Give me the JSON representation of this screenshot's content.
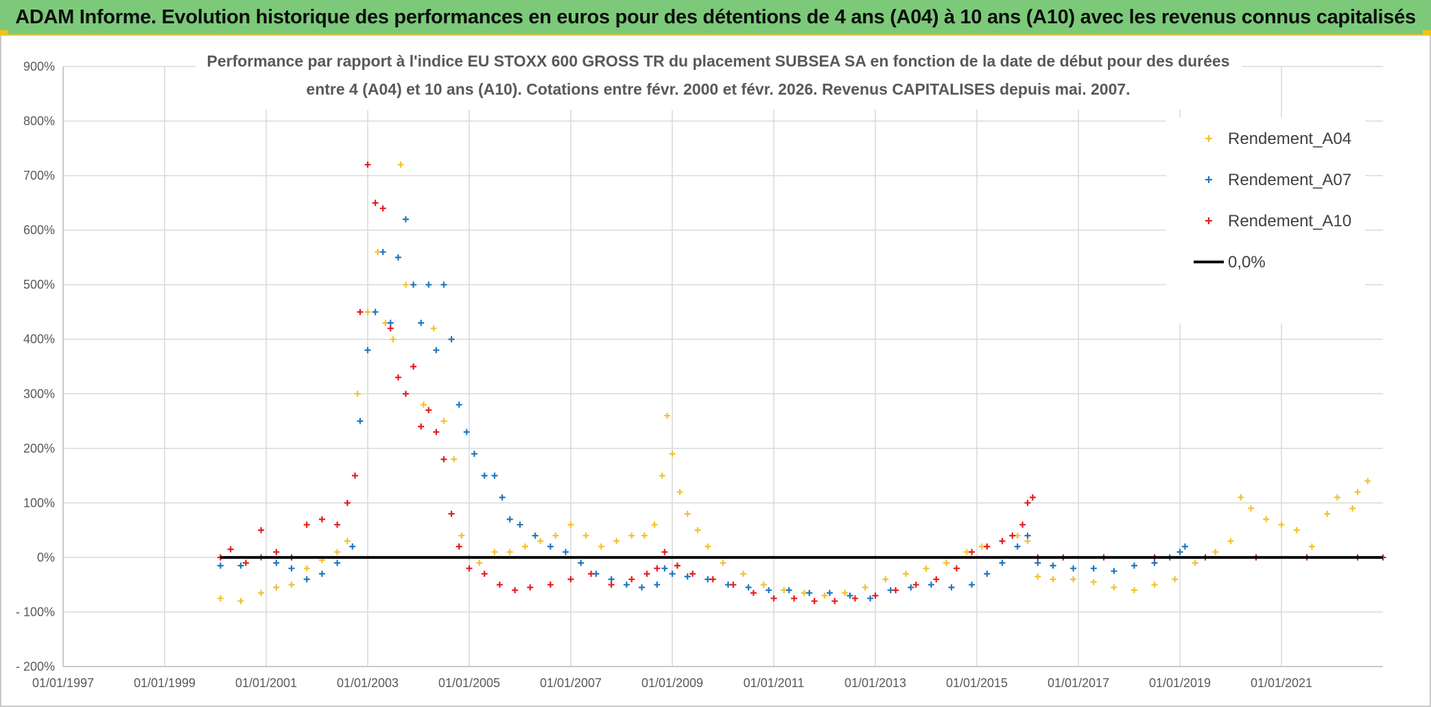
{
  "header": {
    "banner": "ADAM Informe. Evolution historique des performances en euros pour des détentions de 4 ans (A04) à 10 ans (A10) avec les revenus connus capitalisés"
  },
  "chart_data": {
    "type": "scatter",
    "title_line1": "Performance  par rapport à l'indice EU STOXX 600 GROSS TR  du placement SUBSEA SA en fonction de la date de début pour des durées",
    "title_line2": "entre 4 (A04) et 10 ans (A10). Cotations entre févr. 2000 et févr. 2026. Revenus CAPITALISES depuis mai. 2007.",
    "xlabel": "",
    "ylabel": "",
    "x_range": [
      1997.0,
      2023.0
    ],
    "ylim": [
      -200,
      900
    ],
    "y_ticks": [
      -200,
      -100,
      0,
      100,
      200,
      300,
      400,
      500,
      600,
      700,
      800,
      900
    ],
    "y_tick_labels": [
      "- 200%",
      "- 100%",
      "0%",
      "100%",
      "200%",
      "300%",
      "400%",
      "500%",
      "600%",
      "700%",
      "800%",
      "900%"
    ],
    "x_ticks": [
      1997,
      1999,
      2001,
      2003,
      2005,
      2007,
      2009,
      2011,
      2013,
      2015,
      2017,
      2019,
      2021
    ],
    "x_tick_labels": [
      "01/01/1997",
      "01/01/1999",
      "01/01/2001",
      "01/01/2003",
      "01/01/2005",
      "01/01/2007",
      "01/01/2009",
      "01/01/2011",
      "01/01/2013",
      "01/01/2015",
      "01/01/2017",
      "01/01/2019",
      "01/01/2021"
    ],
    "legend_position": "top-right",
    "series": [
      {
        "name": "Rendement_A04",
        "color": "#f5c02b",
        "points": [
          [
            2000.1,
            -75
          ],
          [
            2000.5,
            -80
          ],
          [
            2000.9,
            -65
          ],
          [
            2001.2,
            -55
          ],
          [
            2001.5,
            -50
          ],
          [
            2001.8,
            -20
          ],
          [
            2002.1,
            -5
          ],
          [
            2002.4,
            10
          ],
          [
            2002.6,
            30
          ],
          [
            2002.8,
            300
          ],
          [
            2003.0,
            450
          ],
          [
            2003.2,
            560
          ],
          [
            2003.35,
            430
          ],
          [
            2003.5,
            400
          ],
          [
            2003.65,
            720
          ],
          [
            2003.75,
            500
          ],
          [
            2003.9,
            350
          ],
          [
            2004.1,
            280
          ],
          [
            2004.3,
            420
          ],
          [
            2004.5,
            250
          ],
          [
            2004.7,
            180
          ],
          [
            2004.85,
            40
          ],
          [
            2005.0,
            0
          ],
          [
            2005.2,
            -10
          ],
          [
            2005.5,
            10
          ],
          [
            2005.8,
            10
          ],
          [
            2006.1,
            20
          ],
          [
            2006.4,
            30
          ],
          [
            2006.7,
            40
          ],
          [
            2007.0,
            60
          ],
          [
            2007.3,
            40
          ],
          [
            2007.6,
            20
          ],
          [
            2007.9,
            30
          ],
          [
            2008.2,
            40
          ],
          [
            2008.45,
            40
          ],
          [
            2008.65,
            60
          ],
          [
            2008.8,
            150
          ],
          [
            2008.9,
            260
          ],
          [
            2009.0,
            190
          ],
          [
            2009.15,
            120
          ],
          [
            2009.3,
            80
          ],
          [
            2009.5,
            50
          ],
          [
            2009.7,
            20
          ],
          [
            2010.0,
            -10
          ],
          [
            2010.4,
            -30
          ],
          [
            2010.8,
            -50
          ],
          [
            2011.2,
            -60
          ],
          [
            2011.6,
            -65
          ],
          [
            2012.0,
            -70
          ],
          [
            2012.4,
            -65
          ],
          [
            2012.8,
            -55
          ],
          [
            2013.2,
            -40
          ],
          [
            2013.6,
            -30
          ],
          [
            2014.0,
            -20
          ],
          [
            2014.4,
            -10
          ],
          [
            2014.8,
            10
          ],
          [
            2015.1,
            20
          ],
          [
            2015.5,
            30
          ],
          [
            2015.8,
            40
          ],
          [
            2016.0,
            30
          ],
          [
            2016.2,
            -35
          ],
          [
            2016.5,
            -40
          ],
          [
            2016.9,
            -40
          ],
          [
            2017.3,
            -45
          ],
          [
            2017.7,
            -55
          ],
          [
            2018.1,
            -60
          ],
          [
            2018.5,
            -50
          ],
          [
            2018.9,
            -40
          ],
          [
            2019.3,
            -10
          ],
          [
            2019.7,
            10
          ],
          [
            2020.0,
            30
          ],
          [
            2020.2,
            110
          ],
          [
            2020.4,
            90
          ],
          [
            2020.7,
            70
          ],
          [
            2021.0,
            60
          ],
          [
            2021.3,
            50
          ],
          [
            2021.6,
            20
          ],
          [
            2021.9,
            80
          ],
          [
            2022.1,
            110
          ],
          [
            2022.4,
            90
          ],
          [
            2022.5,
            120
          ],
          [
            2022.7,
            140
          ]
        ]
      },
      {
        "name": "Rendement_A07",
        "color": "#1f77c0",
        "points": [
          [
            2000.1,
            -15
          ],
          [
            2000.5,
            -15
          ],
          [
            2000.9,
            0
          ],
          [
            2001.2,
            -10
          ],
          [
            2001.5,
            -20
          ],
          [
            2001.8,
            -40
          ],
          [
            2002.1,
            -30
          ],
          [
            2002.4,
            -10
          ],
          [
            2002.7,
            20
          ],
          [
            2002.85,
            250
          ],
          [
            2003.0,
            380
          ],
          [
            2003.15,
            450
          ],
          [
            2003.3,
            560
          ],
          [
            2003.45,
            430
          ],
          [
            2003.6,
            550
          ],
          [
            2003.75,
            620
          ],
          [
            2003.9,
            500
          ],
          [
            2004.05,
            430
          ],
          [
            2004.2,
            500
          ],
          [
            2004.35,
            380
          ],
          [
            2004.5,
            500
          ],
          [
            2004.65,
            400
          ],
          [
            2004.8,
            280
          ],
          [
            2004.95,
            230
          ],
          [
            2005.1,
            190
          ],
          [
            2005.3,
            150
          ],
          [
            2005.5,
            150
          ],
          [
            2005.65,
            110
          ],
          [
            2005.8,
            70
          ],
          [
            2006.0,
            60
          ],
          [
            2006.3,
            40
          ],
          [
            2006.6,
            20
          ],
          [
            2006.9,
            10
          ],
          [
            2007.2,
            -10
          ],
          [
            2007.5,
            -30
          ],
          [
            2007.8,
            -40
          ],
          [
            2008.1,
            -50
          ],
          [
            2008.4,
            -55
          ],
          [
            2008.7,
            -50
          ],
          [
            2008.85,
            -20
          ],
          [
            2009.0,
            -30
          ],
          [
            2009.3,
            -35
          ],
          [
            2009.7,
            -40
          ],
          [
            2010.1,
            -50
          ],
          [
            2010.5,
            -55
          ],
          [
            2010.9,
            -60
          ],
          [
            2011.3,
            -60
          ],
          [
            2011.7,
            -65
          ],
          [
            2012.1,
            -65
          ],
          [
            2012.5,
            -70
          ],
          [
            2012.9,
            -75
          ],
          [
            2013.3,
            -60
          ],
          [
            2013.7,
            -55
          ],
          [
            2014.1,
            -50
          ],
          [
            2014.5,
            -55
          ],
          [
            2014.9,
            -50
          ],
          [
            2015.2,
            -30
          ],
          [
            2015.5,
            -10
          ],
          [
            2015.8,
            20
          ],
          [
            2016.0,
            40
          ],
          [
            2016.2,
            -10
          ],
          [
            2016.5,
            -15
          ],
          [
            2016.9,
            -20
          ],
          [
            2017.3,
            -20
          ],
          [
            2017.7,
            -25
          ],
          [
            2018.1,
            -15
          ],
          [
            2018.5,
            -10
          ],
          [
            2018.8,
            0
          ],
          [
            2019.0,
            10
          ],
          [
            2019.1,
            20
          ]
        ]
      },
      {
        "name": "Rendement_A10",
        "color": "#e81c1c",
        "points": [
          [
            2000.1,
            0
          ],
          [
            2000.3,
            15
          ],
          [
            2000.6,
            -10
          ],
          [
            2000.9,
            50
          ],
          [
            2001.2,
            10
          ],
          [
            2001.5,
            0
          ],
          [
            2001.8,
            60
          ],
          [
            2002.1,
            70
          ],
          [
            2002.4,
            60
          ],
          [
            2002.6,
            100
          ],
          [
            2002.75,
            150
          ],
          [
            2002.85,
            450
          ],
          [
            2003.0,
            720
          ],
          [
            2003.15,
            650
          ],
          [
            2003.3,
            640
          ],
          [
            2003.45,
            420
          ],
          [
            2003.6,
            330
          ],
          [
            2003.75,
            300
          ],
          [
            2003.9,
            350
          ],
          [
            2004.05,
            240
          ],
          [
            2004.2,
            270
          ],
          [
            2004.35,
            230
          ],
          [
            2004.5,
            180
          ],
          [
            2004.65,
            80
          ],
          [
            2004.8,
            20
          ],
          [
            2005.0,
            -20
          ],
          [
            2005.3,
            -30
          ],
          [
            2005.6,
            -50
          ],
          [
            2005.9,
            -60
          ],
          [
            2006.2,
            -55
          ],
          [
            2006.6,
            -50
          ],
          [
            2007.0,
            -40
          ],
          [
            2007.4,
            -30
          ],
          [
            2007.8,
            -50
          ],
          [
            2008.2,
            -40
          ],
          [
            2008.5,
            -30
          ],
          [
            2008.7,
            -20
          ],
          [
            2008.85,
            10
          ],
          [
            2009.1,
            -15
          ],
          [
            2009.4,
            -30
          ],
          [
            2009.8,
            -40
          ],
          [
            2010.2,
            -50
          ],
          [
            2010.6,
            -65
          ],
          [
            2011.0,
            -75
          ],
          [
            2011.4,
            -75
          ],
          [
            2011.8,
            -80
          ],
          [
            2012.2,
            -80
          ],
          [
            2012.6,
            -75
          ],
          [
            2013.0,
            -70
          ],
          [
            2013.4,
            -60
          ],
          [
            2013.8,
            -50
          ],
          [
            2014.2,
            -40
          ],
          [
            2014.6,
            -20
          ],
          [
            2014.9,
            10
          ],
          [
            2015.2,
            20
          ],
          [
            2015.5,
            30
          ],
          [
            2015.7,
            40
          ],
          [
            2015.9,
            60
          ],
          [
            2016.0,
            100
          ],
          [
            2016.1,
            110
          ],
          [
            2016.2,
            0
          ],
          [
            2016.7,
            0
          ],
          [
            2017.5,
            0
          ],
          [
            2018.5,
            0
          ],
          [
            2019.5,
            0
          ],
          [
            2020.5,
            0
          ],
          [
            2021.5,
            0
          ],
          [
            2022.5,
            0
          ],
          [
            2023.0,
            0
          ]
        ]
      }
    ],
    "reference_line": {
      "name": "0,0%",
      "y": 0,
      "color": "#000000"
    }
  }
}
